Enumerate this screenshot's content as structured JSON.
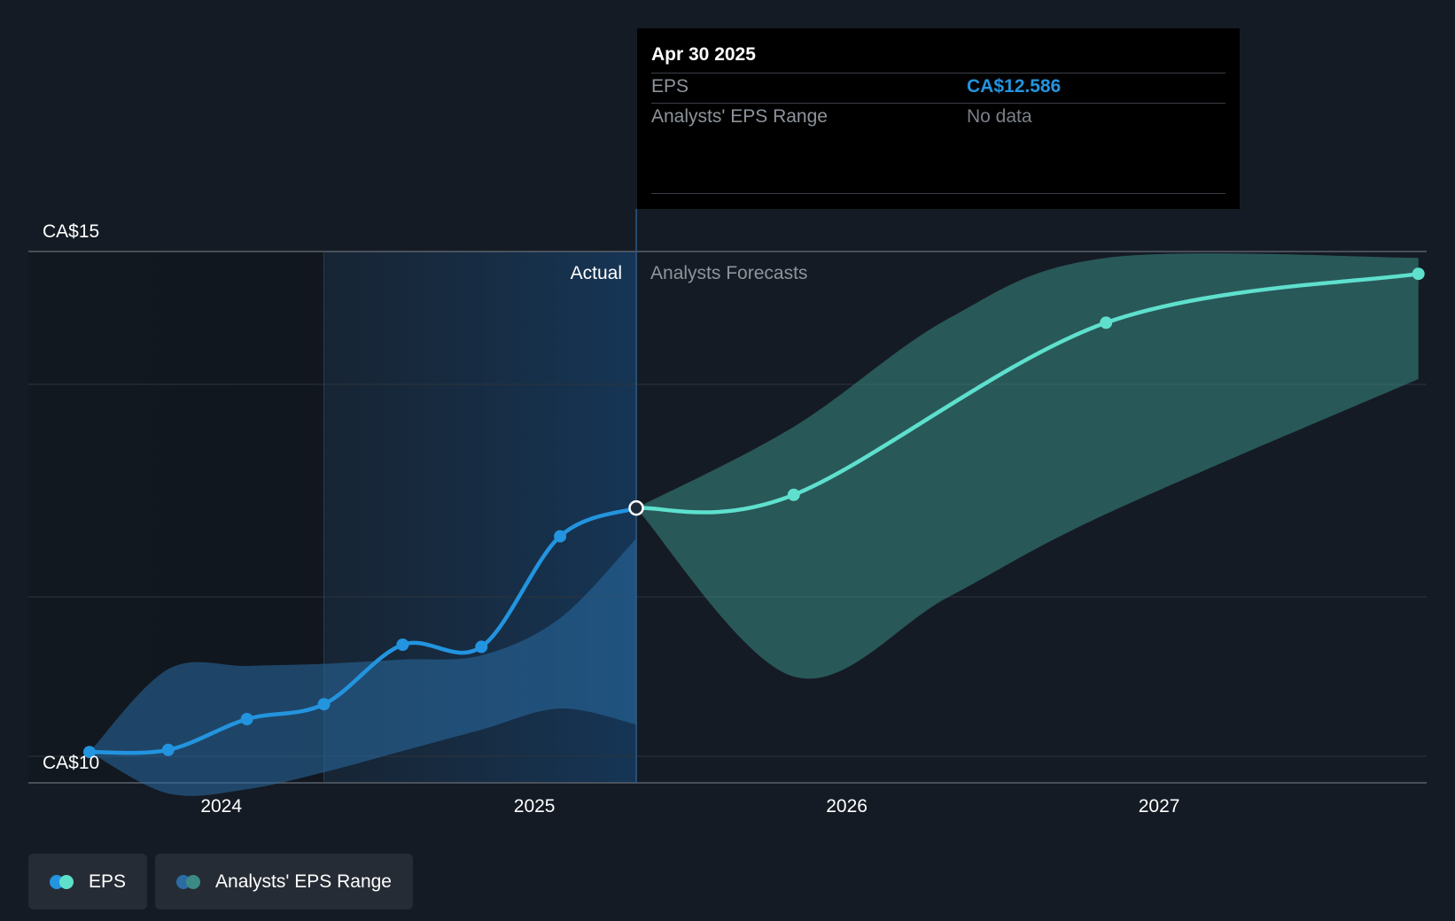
{
  "chart_data": {
    "type": "line",
    "y_axis": {
      "ylim": [
        10,
        15
      ],
      "tick_labels": [
        "CA$15",
        "CA$10"
      ]
    },
    "x_axis": {
      "tick_labels": [
        "2024",
        "2025",
        "2026",
        "2027"
      ]
    },
    "grid": true,
    "regions": {
      "actual_label": "Actual",
      "forecast_label": "Analysts Forecasts"
    },
    "series": [
      {
        "name": "EPS",
        "kind": "actual",
        "color": "#2394df",
        "points": [
          {
            "x": "2023-07-31",
            "y": 10.29
          },
          {
            "x": "2023-10-31",
            "y": 10.31
          },
          {
            "x": "2024-01-31",
            "y": 10.6
          },
          {
            "x": "2024-04-30",
            "y": 10.74
          },
          {
            "x": "2024-07-31",
            "y": 11.3
          },
          {
            "x": "2024-10-31",
            "y": 11.28
          },
          {
            "x": "2025-01-31",
            "y": 12.32
          },
          {
            "x": "2025-04-30",
            "y": 12.586
          }
        ]
      },
      {
        "name": "EPS",
        "kind": "forecast",
        "color": "#5ee0cd",
        "points": [
          {
            "x": "2025-04-30",
            "y": 12.586
          },
          {
            "x": "2025-10-31",
            "y": 12.71
          },
          {
            "x": "2026-10-31",
            "y": 14.33
          },
          {
            "x": "2027-10-31",
            "y": 14.79
          }
        ]
      }
    ],
    "ranges": [
      {
        "name": "Analysts' EPS Range",
        "kind": "actual",
        "color": "#2a6ca3",
        "x": [
          "2023-07-31",
          "2023-10-31",
          "2024-01-31",
          "2024-04-30",
          "2024-07-31",
          "2024-10-31",
          "2025-01-31",
          "2025-04-30"
        ],
        "low": [
          10.29,
          9.9,
          9.94,
          10.1,
          10.3,
          10.5,
          10.7,
          10.55
        ],
        "high": [
          10.29,
          11.07,
          11.1,
          11.12,
          11.16,
          11.2,
          11.55,
          12.3
        ]
      },
      {
        "name": "Analysts' EPS Range",
        "kind": "forecast",
        "color": "#3b8a85",
        "x": [
          "2025-04-30",
          "2025-10-31",
          "2026-04-30",
          "2026-10-31",
          "2027-10-31"
        ],
        "low": [
          12.586,
          11.0,
          11.75,
          12.53,
          13.8
        ],
        "high": [
          12.586,
          13.35,
          14.37,
          14.94,
          14.94
        ]
      }
    ],
    "tooltip": {
      "date": "Apr 30 2025",
      "rows": [
        {
          "label": "EPS",
          "value": "CA$12.586",
          "value_color": "#2394df"
        },
        {
          "label": "Analysts' EPS Range",
          "value": "No data",
          "value_color": "#7b8088"
        }
      ]
    },
    "legend": [
      {
        "label": "EPS",
        "colors": [
          "#2394df",
          "#5ee0cd"
        ]
      },
      {
        "label": "Analysts' EPS Range",
        "colors": [
          "#2a6ca3",
          "#3b8a85"
        ]
      }
    ]
  }
}
